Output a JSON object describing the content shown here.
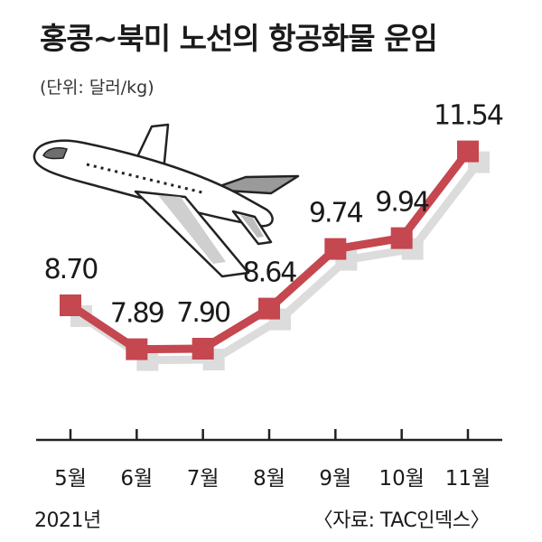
{
  "header": {
    "title": "홍콩~북미 노선의 항공화물 운임",
    "unit": "(단위: 달러/kg)"
  },
  "footer": {
    "year": "2021년",
    "source": "〈자료: TAC인덱스〉"
  },
  "chart_data": {
    "type": "line",
    "title": "홍콩~북미 노선의 항공화물 운임",
    "ylabel": "(단위: 달러/kg)",
    "xlabel": "",
    "categories": [
      "5월",
      "6월",
      "7월",
      "8월",
      "9월",
      "10월",
      "11월"
    ],
    "series": [
      {
        "values": [
          8.7,
          7.89,
          7.9,
          8.64,
          9.74,
          9.94,
          11.54
        ]
      }
    ],
    "labels": [
      "8.70",
      "7.89",
      "7.90",
      "8.64",
      "9.74",
      "9.94",
      "11.54"
    ],
    "ylim": [
      6.3,
      12.6
    ],
    "grid": false,
    "colors": {
      "line": "#c5474f",
      "shadow": "#dcdcdc",
      "axis": "#222222"
    },
    "decoration_icon": "airplane-icon"
  }
}
